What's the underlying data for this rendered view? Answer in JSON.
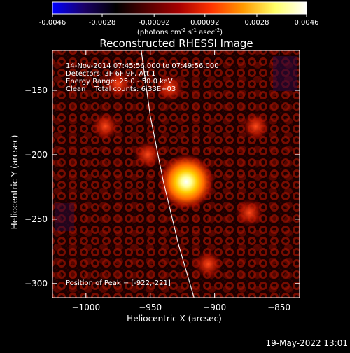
{
  "colorbar": {
    "tick_labels": [
      "-0.0046",
      "-0.0028",
      "-0.00092",
      "0.00092",
      "0.0028",
      "0.0046"
    ],
    "tick_values": [
      -0.0046,
      -0.0028,
      -0.00092,
      0.00092,
      0.0028,
      0.0046
    ],
    "range": [
      -0.0046,
      0.0046
    ],
    "units_text": "(photons cm",
    "units_exp1": "-2",
    "units_s": " s",
    "units_exp2": "-1",
    "units_asec": " asec",
    "units_exp3": "-2",
    "units_close": ")",
    "colors": [
      "#0000ff",
      "#1a0066",
      "#000000",
      "#550000",
      "#a80000",
      "#ff3300",
      "#ff9900",
      "#ffff66",
      "#ffffff"
    ]
  },
  "chart_data": {
    "type": "heatmap",
    "title": "Reconstructed RHESSI Image",
    "xlabel": "Heliocentric X (arcsec)",
    "ylabel": "Heliocentric Y (arcsec)",
    "xlim": [
      -1026,
      -834
    ],
    "ylim": [
      -311,
      -119
    ],
    "x_ticks": [
      -1000,
      -950,
      -900,
      -850
    ],
    "y_ticks": [
      -150,
      -200,
      -250,
      -300
    ],
    "x_tick_labels": [
      "−1000",
      "−950",
      "−900",
      "−850"
    ],
    "y_tick_labels": [
      "−150",
      "−200",
      "−250",
      "−300"
    ],
    "info_lines": [
      "14-Nov-2014 07:45:56.000 to 07:49:56.000",
      "Detectors: 3F 6F 9F, Att 1",
      "Energy Range: 25.0 - 50.0 keV",
      "Clean    Total counts: 6.33E+03"
    ],
    "peak_label": "Position of Peak = [-922,-221]",
    "peak": {
      "x": -922,
      "y": -221
    },
    "limb_curve": [
      [
        -957,
        -119
      ],
      [
        -950,
        -170
      ],
      [
        -940,
        -220
      ],
      [
        -928,
        -270
      ],
      [
        -916,
        -311
      ]
    ],
    "secondary_sources": [
      {
        "x": -975,
        "y": -145
      },
      {
        "x": -985,
        "y": -178
      },
      {
        "x": -935,
        "y": -148
      },
      {
        "x": -868,
        "y": -178
      },
      {
        "x": -952,
        "y": -200
      },
      {
        "x": -905,
        "y": -285
      },
      {
        "x": -873,
        "y": -245
      }
    ]
  },
  "footer": {
    "date": "19-May-2022 13:01"
  }
}
